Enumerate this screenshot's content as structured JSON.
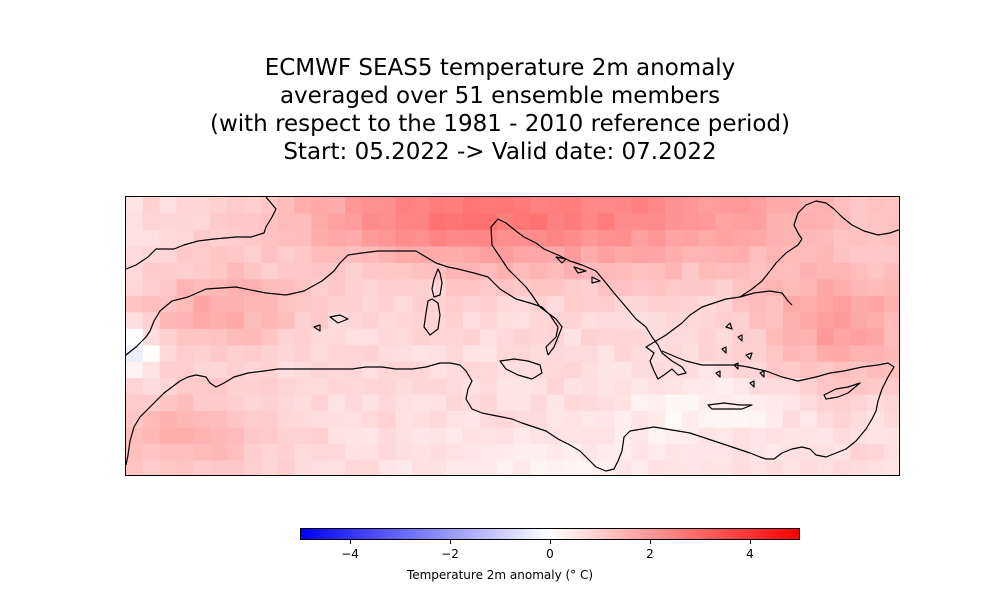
{
  "title_lines": [
    "ECMWF SEAS5 temperature 2m anomaly",
    "averaged over 51 ensemble members",
    "(with respect to the 1981 - 2010 reference period)",
    "Start: 05.2022 -> Valid date: 07.2022"
  ],
  "colorbar": {
    "label": "Temperature 2m anomaly (° C)",
    "min": -5,
    "max": 5,
    "ticks": [
      -4,
      -2,
      0,
      2,
      4
    ],
    "tick_labels": [
      "−4",
      "−2",
      "0",
      "2",
      "4"
    ],
    "colors": {
      "low": "#0000ff",
      "mid": "#ffffff",
      "high": "#ff0000"
    }
  },
  "map": {
    "region": "Mediterranean",
    "grid_cols": 46,
    "grid_rows": 17,
    "coastline_color": "#000000"
  }
}
